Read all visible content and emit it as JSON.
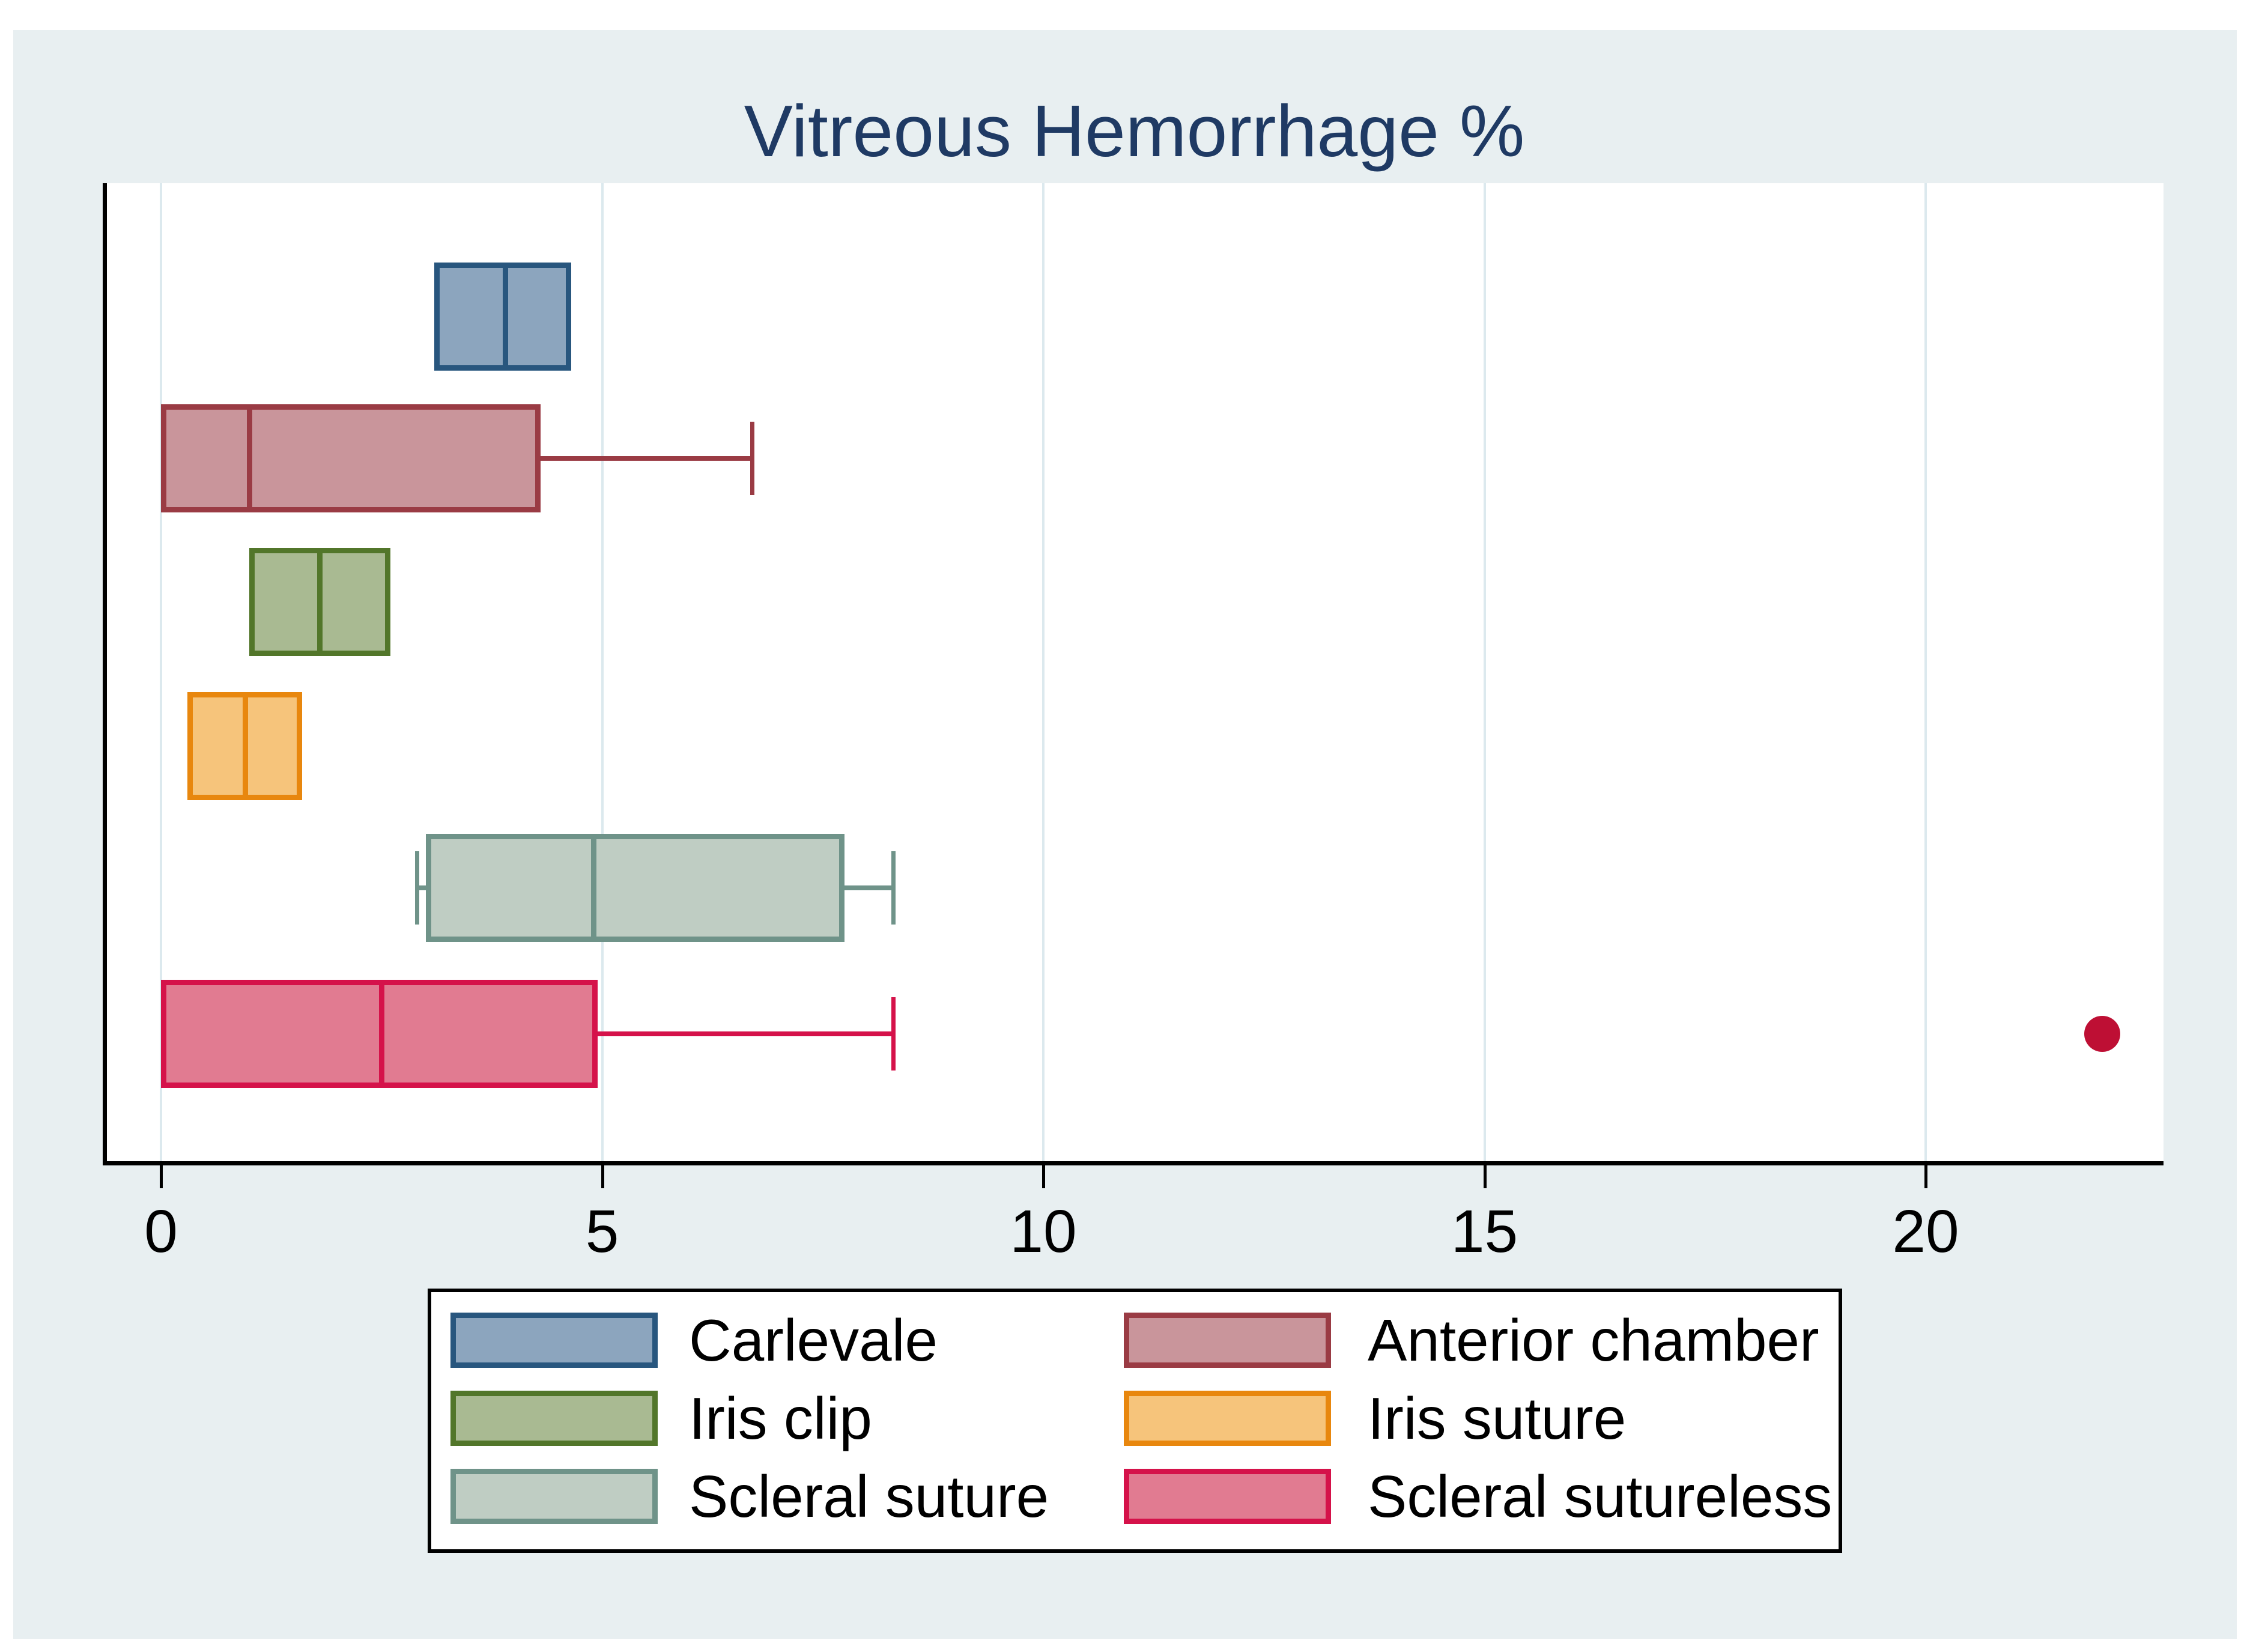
{
  "chart_data": {
    "type": "boxplot",
    "orientation": "horizontal",
    "title": "Vitreous Hemorrhage %",
    "x_axis": {
      "ticks": [
        0,
        5,
        10,
        15,
        20
      ],
      "tick_labels": [
        "0",
        "5",
        "10",
        "15",
        "20"
      ],
      "min": 0,
      "max": 22.7,
      "grid": true
    },
    "y_axis": {
      "labels_shown": false
    },
    "series": [
      {
        "name": "Carlevale",
        "fill": "#8CA5BE",
        "stroke": "#28567E",
        "whisker_low": 3.1,
        "q1": 3.1,
        "median": 3.9,
        "q3": 4.65,
        "whisker_high": 4.65,
        "outliers": []
      },
      {
        "name": "Anterior chamber",
        "fill": "#C9959B",
        "stroke": "#9A3B44",
        "whisker_low": 0,
        "q1": 0,
        "median": 1.0,
        "q3": 4.3,
        "whisker_high": 6.7,
        "outliers": []
      },
      {
        "name": "Iris clip",
        "fill": "#A9BA92",
        "stroke": "#52762A",
        "whisker_low": 1.0,
        "q1": 1.0,
        "median": 1.8,
        "q3": 2.6,
        "whisker_high": 2.6,
        "outliers": []
      },
      {
        "name": "Iris suture",
        "fill": "#F6C47B",
        "stroke": "#E8870E",
        "whisker_low": 0.3,
        "q1": 0.3,
        "median": 0.95,
        "q3": 1.6,
        "whisker_high": 1.6,
        "outliers": []
      },
      {
        "name": "Scleral suture",
        "fill": "#BFCDC3",
        "stroke": "#6F9389",
        "whisker_low": 2.9,
        "q1": 3.0,
        "median": 4.9,
        "q3": 7.75,
        "whisker_high": 8.3,
        "outliers": []
      },
      {
        "name": "Scleral sutureless",
        "fill": "#E17B91",
        "stroke": "#D5124A",
        "whisker_low": 0,
        "q1": 0,
        "median": 2.5,
        "q3": 4.95,
        "whisker_high": 8.3,
        "outliers": [
          22
        ]
      }
    ],
    "outlier_color": "#BE0F34",
    "legend": {
      "position": "bottom",
      "columns": 2,
      "entries": [
        "Carlevale",
        "Anterior chamber",
        "Iris clip",
        "Iris suture",
        "Scleral suture",
        "Scleral sutureless"
      ]
    },
    "colors": {
      "canvas_background": "#E8EFF1",
      "plot_background": "#FFFFFF",
      "gridline": "#DCE9EE",
      "axis": "#000000",
      "title": "#1F3A64"
    }
  }
}
